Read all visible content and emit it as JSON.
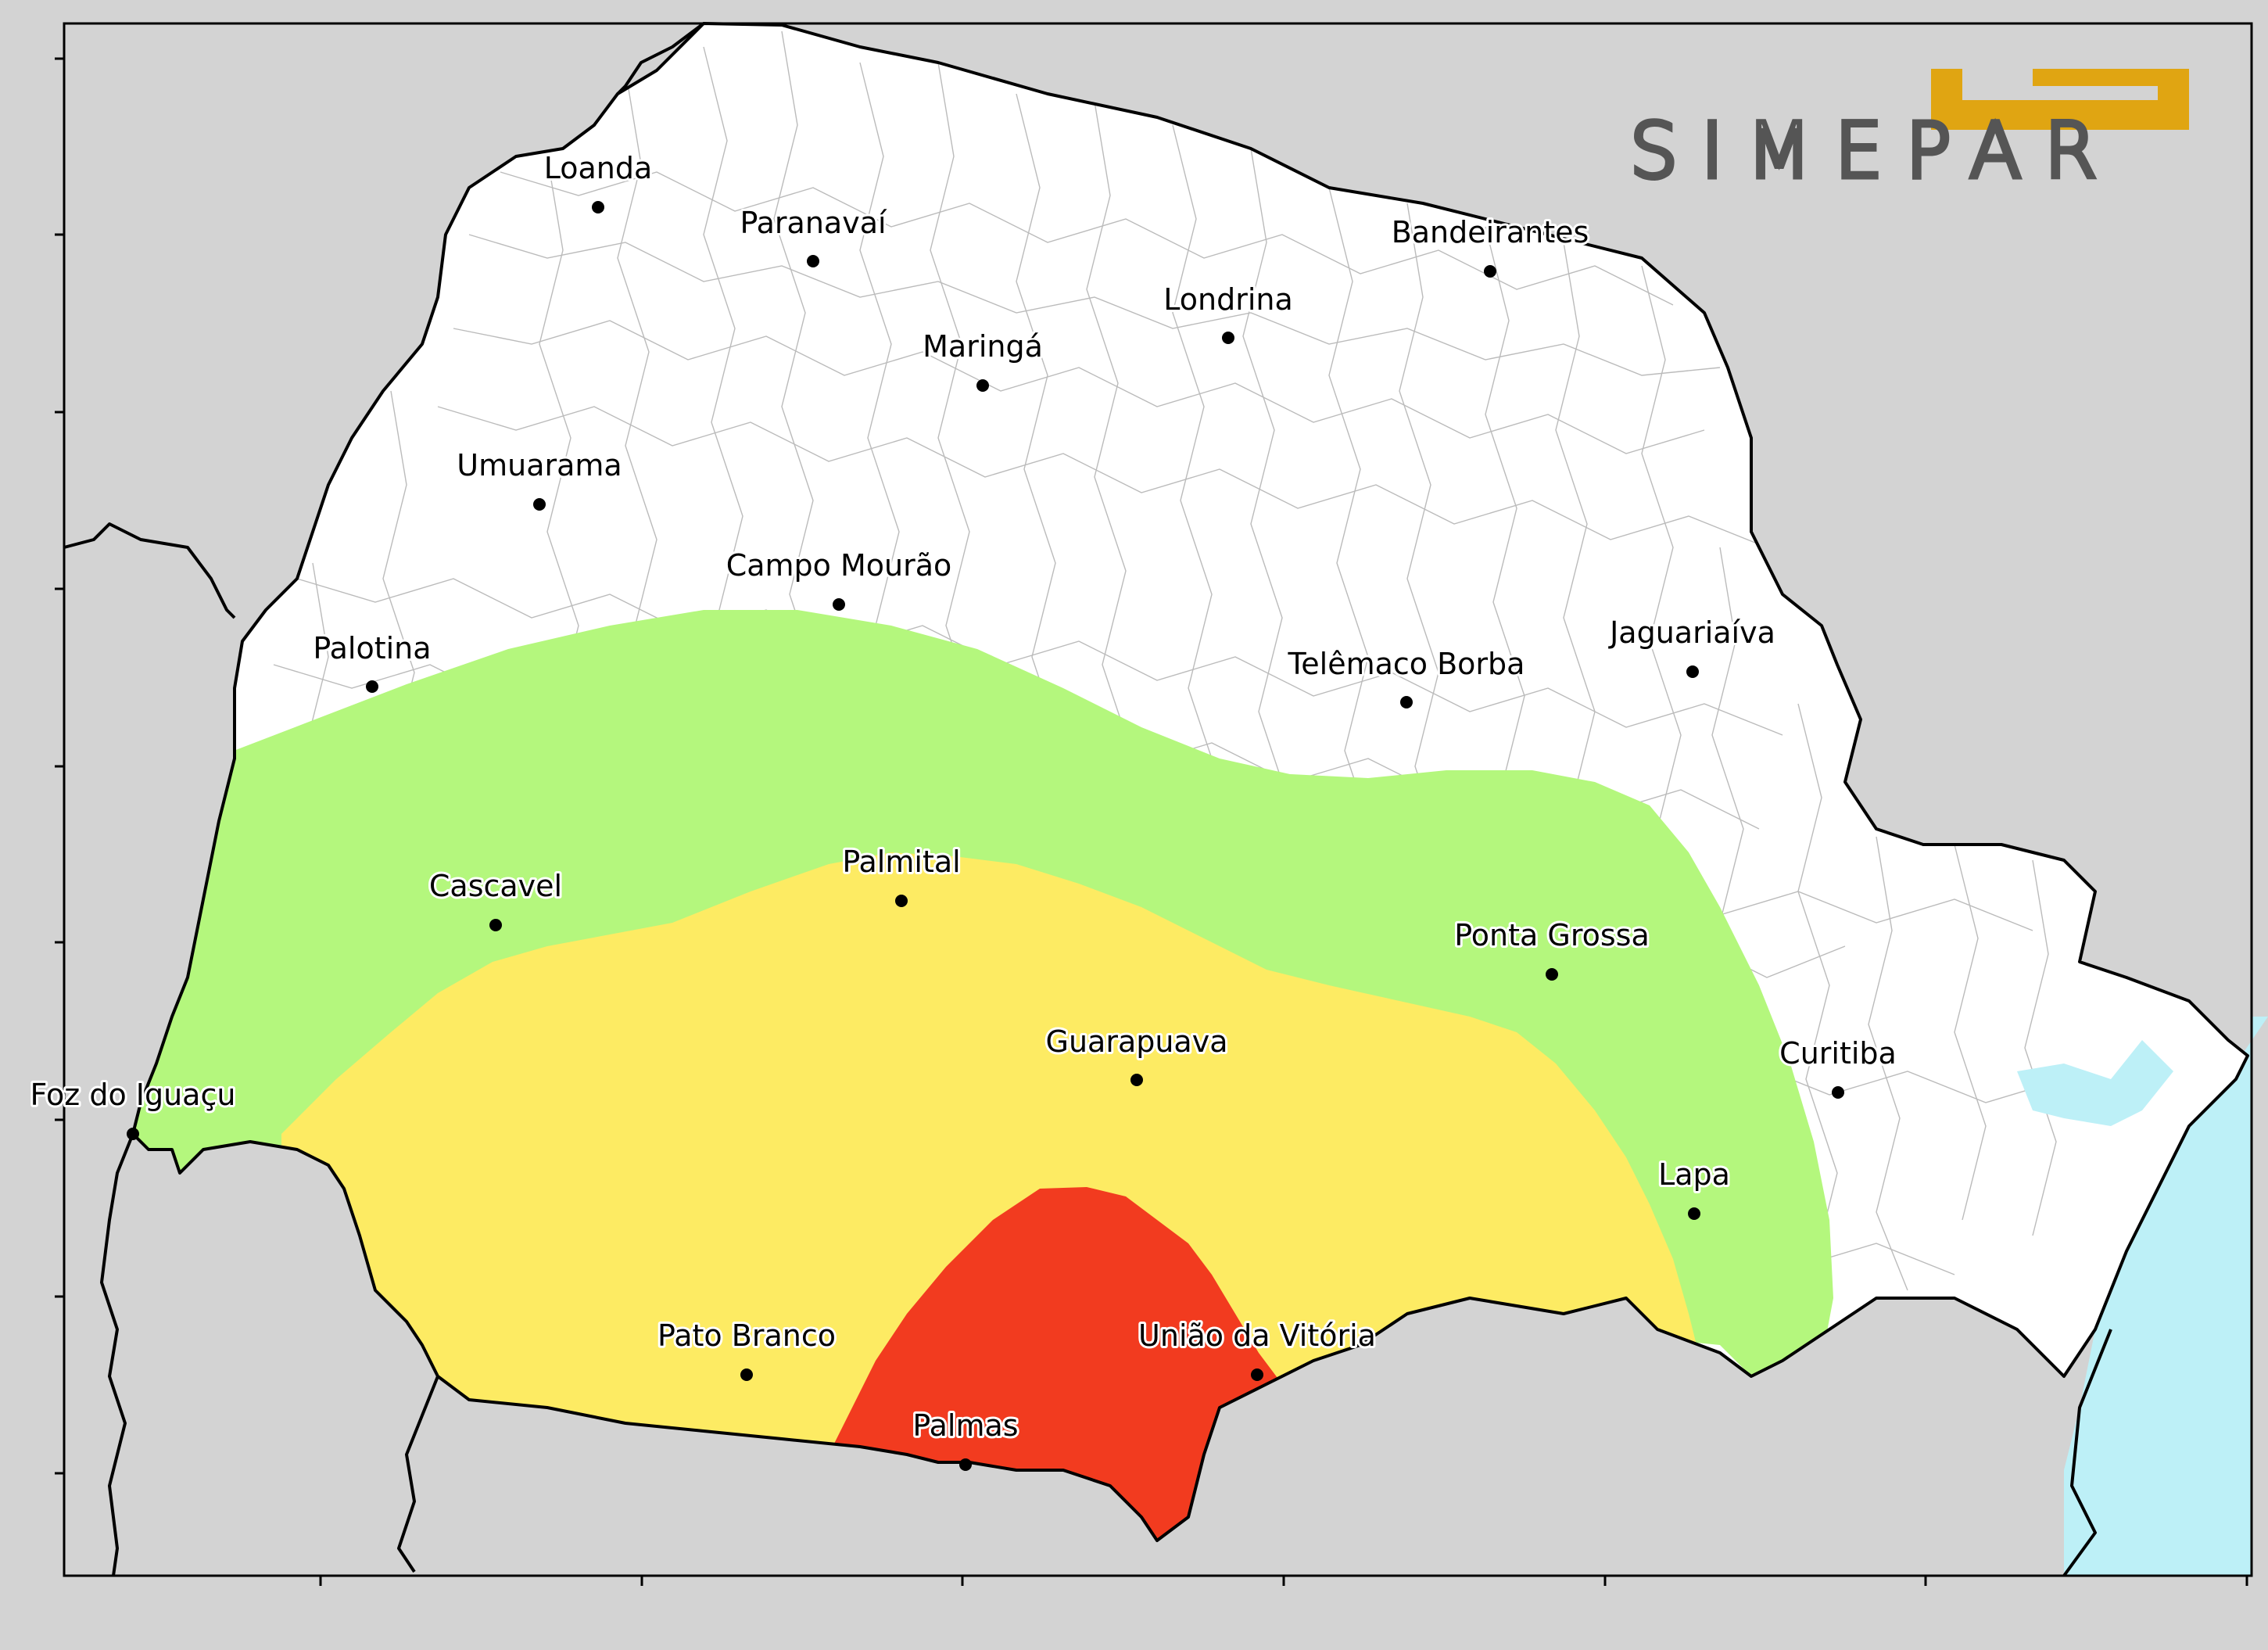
{
  "logo": {
    "text": "SIMEPAR",
    "mark_color": "#e0a512",
    "text_color": "#555555"
  },
  "colors": {
    "background": "#d3d3d3",
    "state_fill": "#ffffff",
    "ocean": "#bdf0f7",
    "border": "#000000",
    "municipal_lines": "#bbbbbb",
    "zone_green": "#b4f77d",
    "zone_yellow": "#fdeb63",
    "zone_red": "#f23b1f"
  },
  "zones": [
    {
      "name": "zone_green",
      "color": "#b4f77d"
    },
    {
      "name": "zone_yellow",
      "color": "#fdeb63"
    },
    {
      "name": "zone_red",
      "color": "#f23b1f"
    }
  ],
  "cities": [
    {
      "key": "loanda",
      "name": "Loanda"
    },
    {
      "key": "paranavai",
      "name": "Paranavaí"
    },
    {
      "key": "bandeirantes",
      "name": "Bandeirantes"
    },
    {
      "key": "londrina",
      "name": "Londrina"
    },
    {
      "key": "maringa",
      "name": "Maringá"
    },
    {
      "key": "umuarama",
      "name": "Umuarama"
    },
    {
      "key": "campo-mourao",
      "name": "Campo Mourão"
    },
    {
      "key": "palotina",
      "name": "Palotina"
    },
    {
      "key": "jaguariaiva",
      "name": "Jaguariaíva"
    },
    {
      "key": "telemaco-borba",
      "name": "Telêmaco Borba"
    },
    {
      "key": "cascavel",
      "name": "Cascavel"
    },
    {
      "key": "palmital",
      "name": "Palmital"
    },
    {
      "key": "ponta-grossa",
      "name": "Ponta Grossa"
    },
    {
      "key": "guarapuava",
      "name": "Guarapuava"
    },
    {
      "key": "curitiba",
      "name": "Curitiba"
    },
    {
      "key": "foz-do-iguacu",
      "name": "Foz do Iguaçu"
    },
    {
      "key": "lapa",
      "name": "Lapa"
    },
    {
      "key": "pato-branco",
      "name": "Pato Branco"
    },
    {
      "key": "uniao-da-vitoria",
      "name": "União da Vitória"
    },
    {
      "key": "palmas",
      "name": "Palmas"
    }
  ]
}
